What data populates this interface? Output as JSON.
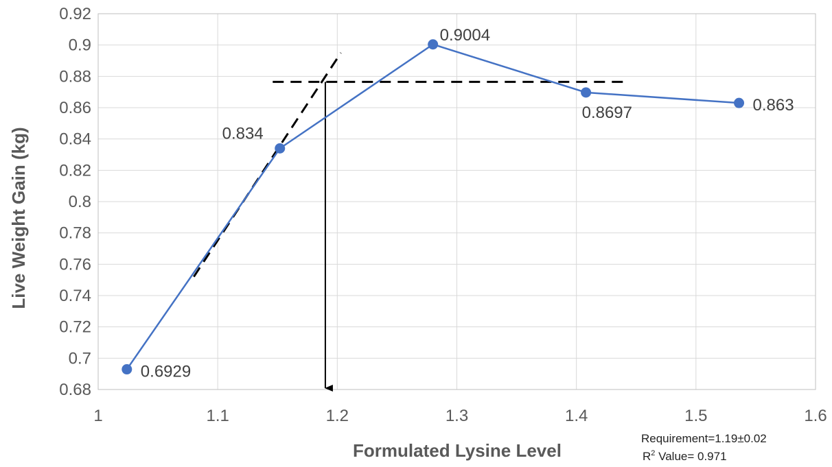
{
  "chart_data": {
    "type": "line",
    "title": "",
    "xlabel": "Formulated Lysine Level",
    "ylabel": "Live Weight Gain (kg)",
    "xlim": [
      1,
      1.6
    ],
    "ylim": [
      0.68,
      0.92
    ],
    "x_ticks": [
      "1",
      "1.1",
      "1.2",
      "1.3",
      "1.4",
      "1.5",
      "1.6"
    ],
    "y_ticks": [
      "0.68",
      "0.7",
      "0.72",
      "0.74",
      "0.76",
      "0.78",
      "0.8",
      "0.82",
      "0.84",
      "0.86",
      "0.88",
      "0.9",
      "0.92"
    ],
    "grid": "vertical and horizontal",
    "legend": "none",
    "series": [
      {
        "color": "#4472C4",
        "points": [
          {
            "x": 1.024,
            "y": 0.6929,
            "label": "0.6929",
            "label_pos": "right"
          },
          {
            "x": 1.152,
            "y": 0.834,
            "label": "0.834",
            "label_pos": "upper-left"
          },
          {
            "x": 1.28,
            "y": 0.9004,
            "label": "0.9004",
            "label_pos": "upper-right"
          },
          {
            "x": 1.408,
            "y": 0.8697,
            "label": "0.8697",
            "label_pos": "below"
          },
          {
            "x": 1.536,
            "y": 0.863,
            "label": "0.863",
            "label_pos": "right"
          }
        ]
      }
    ],
    "annotations": {
      "rising_dashed_line": {
        "x1": 1.08,
        "y1": 0.752,
        "x2": 1.203,
        "y2": 0.895,
        "color": "#000000"
      },
      "plateau_dashed_line": {
        "x1": 1.146,
        "x2": 1.442,
        "y": 0.8765,
        "color": "#000000"
      },
      "requirement_arrow": {
        "x": 1.19,
        "y_from": 0.8765,
        "y_to": 0.68,
        "color": "#000000"
      },
      "notes": [
        "Requirement=1.19±0.02",
        "R",
        "2",
        " Value= 0.971"
      ]
    }
  }
}
